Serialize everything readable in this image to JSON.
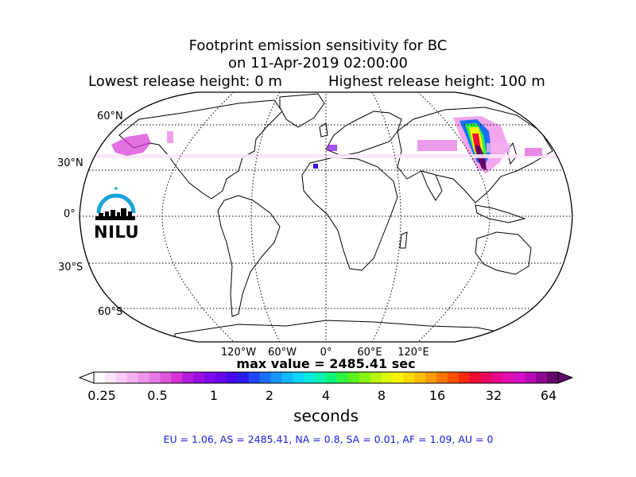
{
  "title": {
    "line1": "Footprint emission sensitivity for BC",
    "line2": "on 11-Apr-2019 02:00:00",
    "lowest": "Lowest release height: 0 m",
    "highest": "Highest release height: 100 m"
  },
  "map": {
    "projection": "Robinson (world)",
    "lat_labels": [
      "60°N",
      "30°N",
      "0°",
      "30°S",
      "60°S"
    ],
    "lon_labels": [
      "120°W",
      "60°W",
      "0°",
      "60°E",
      "120°E"
    ],
    "logo_text": "NILU"
  },
  "max_value": "max value = 2485.41 sec",
  "colorbar": {
    "tick_labels": [
      "0.25",
      "0.5",
      "1",
      "2",
      "4",
      "8",
      "16",
      "32",
      "64"
    ],
    "units": "seconds",
    "colors": [
      "#ffffff",
      "#fde6fb",
      "#f9cdf6",
      "#f4b2f0",
      "#ee96ea",
      "#e87ae3",
      "#df57dc",
      "#d534d4",
      "#b51ade",
      "#9a10e4",
      "#7f0ae8",
      "#6306ea",
      "#4708ec",
      "#2b1af0",
      "#1e46f5",
      "#1a6ffa",
      "#1896fd",
      "#14b8ff",
      "#0dd5f9",
      "#08eadd",
      "#08f4b0",
      "#0af67b",
      "#2ef43f",
      "#5cf21d",
      "#8bf212",
      "#b7f50c",
      "#dcf808",
      "#f9f503",
      "#fedb00",
      "#fdbd00",
      "#fd9b00",
      "#fd7600",
      "#fb5000",
      "#f92a10",
      "#f10c34",
      "#ea0561",
      "#e6078c",
      "#e20cb0",
      "#d80dc6",
      "#b80ab6",
      "#8e0792",
      "#64046a"
    ]
  },
  "region_stats": "EU = 1.06,  AS = 2485.41,  NA = 0.8,  SA = 0.01,  AF = 1.09,  AU = 0"
}
